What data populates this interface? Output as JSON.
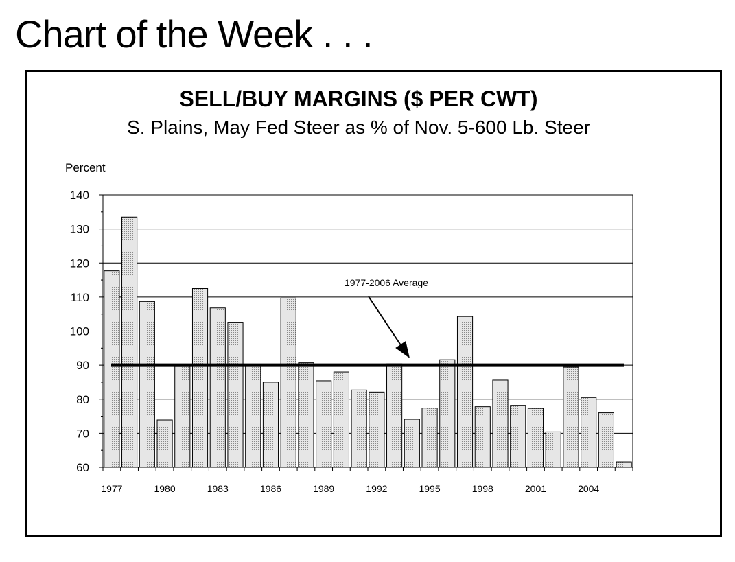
{
  "page": {
    "title": "Chart of the Week . . ."
  },
  "chart_data": {
    "type": "bar",
    "title": "SELL/BUY  MARGINS ($  PER  CWT)",
    "subtitle": "S. Plains, May Fed Steer as % of Nov. 5-600 Lb. Steer",
    "ylabel": "Percent",
    "xlabel": "",
    "ylim": [
      60,
      140
    ],
    "yticks": [
      60,
      70,
      80,
      90,
      100,
      110,
      120,
      130,
      140
    ],
    "grid": true,
    "categories": [
      "1977",
      "1978",
      "1979",
      "1980",
      "1981",
      "1982",
      "1983",
      "1984",
      "1985",
      "1986",
      "1987",
      "1988",
      "1989",
      "1990",
      "1991",
      "1992",
      "1993",
      "1994",
      "1995",
      "1996",
      "1997",
      "1998",
      "1999",
      "2000",
      "2001",
      "2002",
      "2003",
      "2004",
      "2005",
      "2006"
    ],
    "x_tick_labels": [
      "1977",
      "1980",
      "1983",
      "1986",
      "1989",
      "1992",
      "1995",
      "1998",
      "2001",
      "2004"
    ],
    "values": [
      117.7,
      133.5,
      108.7,
      73.9,
      89.6,
      112.5,
      106.8,
      102.6,
      89.8,
      85.0,
      109.7,
      90.7,
      85.4,
      88.0,
      82.7,
      82.1,
      90.4,
      74.1,
      77.4,
      91.6,
      104.3,
      77.8,
      85.6,
      78.2,
      77.3,
      70.4,
      89.4,
      80.5,
      76.0,
      61.6
    ],
    "reference_line": {
      "value": 90,
      "label": "1977-2006 Average"
    },
    "colors": {
      "bar_fill": "#d3d3d3",
      "bar_stroke": "#000000",
      "line": "#000000"
    }
  }
}
